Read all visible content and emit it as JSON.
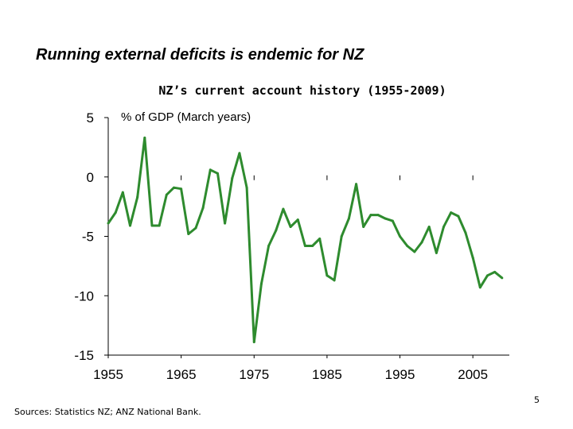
{
  "slide": {
    "title": "Running external deficits is endemic for NZ",
    "sources": "Sources:  Statistics NZ; ANZ National Bank.",
    "page_number": "5"
  },
  "chart_data": {
    "type": "line",
    "title": "NZ’s current account history (1955-2009)",
    "ylabel": "% of GDP (March years)",
    "xlabel": "",
    "xlim": [
      1955,
      2010
    ],
    "ylim": [
      -15,
      5
    ],
    "x_ticks": [
      1955,
      1965,
      1975,
      1985,
      1995,
      2005
    ],
    "y_ticks": [
      5,
      0,
      -5,
      -10,
      -15
    ],
    "line_color": "#2e8b2e",
    "grid": false,
    "legend": "none",
    "series": [
      {
        "x": [
          1955,
          1956,
          1957,
          1958,
          1959,
          1960,
          1961,
          1962,
          1963,
          1964,
          1965,
          1966,
          1967,
          1968,
          1969,
          1970,
          1971,
          1972,
          1973,
          1974,
          1975,
          1976,
          1977,
          1978,
          1979,
          1980,
          1981,
          1982,
          1983,
          1984,
          1985,
          1986,
          1987,
          1988,
          1989,
          1990,
          1991,
          1992,
          1993,
          1994,
          1995,
          1996,
          1997,
          1998,
          1999,
          2000,
          2001,
          2002,
          2003,
          2004,
          2005,
          2006,
          2007,
          2008,
          2009
        ],
        "y": [
          -3.9,
          -3.0,
          -1.3,
          -4.1,
          -1.7,
          3.3,
          -4.1,
          -4.1,
          -1.5,
          -0.9,
          -1.0,
          -4.8,
          -4.3,
          -2.6,
          0.6,
          0.3,
          -3.9,
          -0.1,
          2.0,
          -0.9,
          -13.9,
          -9.0,
          -5.8,
          -4.5,
          -2.7,
          -4.2,
          -3.6,
          -5.8,
          -5.8,
          -5.2,
          -8.3,
          -8.7,
          -5.0,
          -3.5,
          -0.6,
          -4.2,
          -3.2,
          -3.2,
          -3.5,
          -3.7,
          -5.0,
          -5.8,
          -6.3,
          -5.5,
          -4.2,
          -6.4,
          -4.2,
          -3.0,
          -3.3,
          -4.7,
          -6.8,
          -9.3,
          -8.3,
          -8.0,
          -8.5
        ]
      }
    ]
  }
}
